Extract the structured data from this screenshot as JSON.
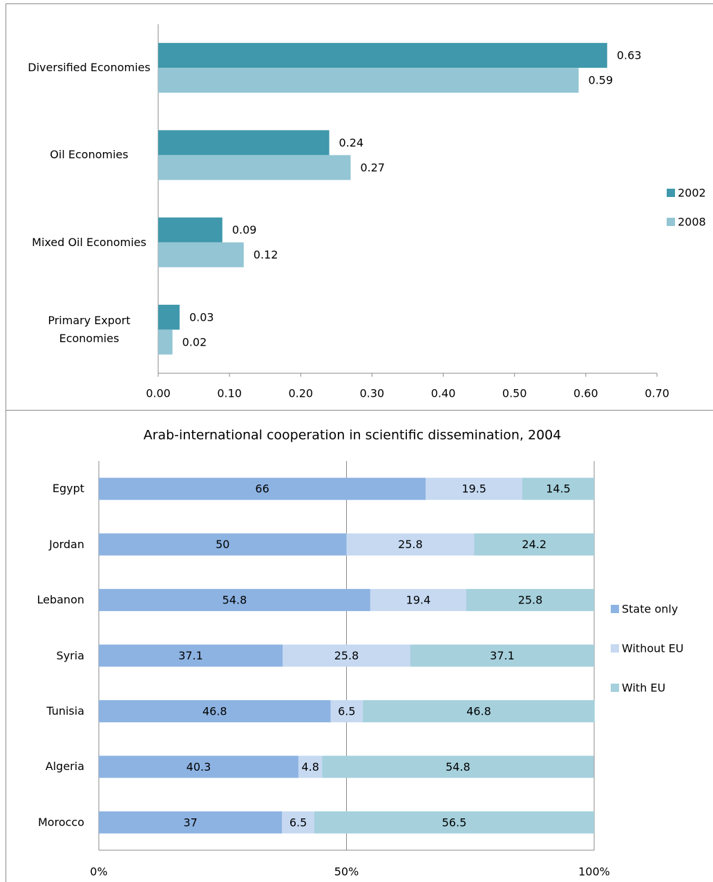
{
  "chart_data": [
    {
      "type": "bar",
      "orientation": "horizontal",
      "categories": [
        "Diversified Economies",
        "Oil Economies",
        "Mixed Oil Economies",
        "Primary Export Economies"
      ],
      "series": [
        {
          "name": "2002",
          "color": "#3f98ab",
          "values": [
            0.63,
            0.24,
            0.09,
            0.03
          ]
        },
        {
          "name": "2008",
          "color": "#93c5d4",
          "values": [
            0.59,
            0.27,
            0.12,
            0.02
          ]
        }
      ],
      "xlim": [
        0,
        0.7
      ],
      "xticks": [
        {
          "value": 0,
          "label": "0.00"
        },
        {
          "value": 0.1,
          "label": "0.10"
        },
        {
          "value": 0.2,
          "label": "0.20"
        },
        {
          "value": 0.3,
          "label": "0.30"
        },
        {
          "value": 0.4,
          "label": "0.40"
        },
        {
          "value": 0.5,
          "label": "0.50"
        },
        {
          "value": 0.6,
          "label": "0.60"
        },
        {
          "value": 0.7,
          "label": "0.70"
        }
      ],
      "grid": false,
      "legend": "right"
    },
    {
      "type": "stacked_bar",
      "orientation": "horizontal",
      "title": "Arab-international cooperation in scientific dissemination, 2004",
      "categories": [
        "Egypt",
        "Jordan",
        "Lebanon",
        "Syria",
        "Tunisia",
        "Algeria",
        "Morocco"
      ],
      "series": [
        {
          "name": "State only",
          "color": "#8db3e2",
          "values": [
            66,
            50,
            54.8,
            37.1,
            46.8,
            40.3,
            37
          ]
        },
        {
          "name": "Without EU",
          "color": "#c6d9f1",
          "values": [
            19.5,
            25.8,
            19.4,
            25.8,
            6.5,
            4.8,
            6.5
          ]
        },
        {
          "name": "With EU",
          "color": "#a5d0dc",
          "values": [
            14.5,
            24.2,
            25.8,
            37.1,
            46.8,
            54.8,
            56.5
          ]
        }
      ],
      "xlim": [
        0,
        100
      ],
      "xticks": [
        {
          "value": 0,
          "label": "0%"
        },
        {
          "value": 50,
          "label": "50%"
        },
        {
          "value": 100,
          "label": "100%"
        }
      ],
      "grid": true,
      "legend": "right"
    }
  ]
}
